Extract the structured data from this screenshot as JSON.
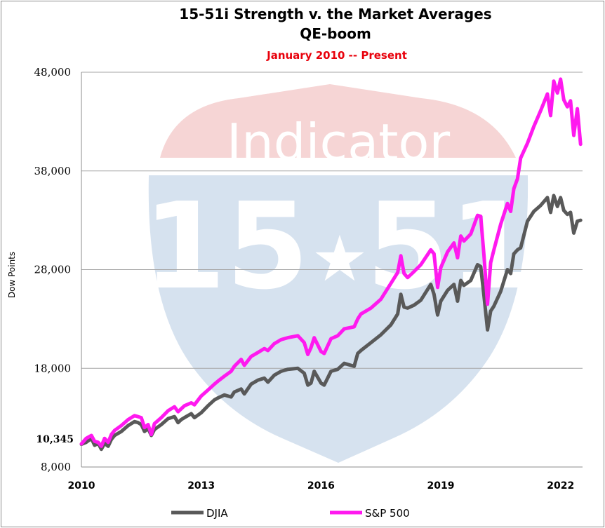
{
  "chart_data": {
    "type": "line",
    "title": "15-51i Strength v. the Market Averages",
    "title_line2": "QE-boom",
    "subtitle": "January 2010 -- Present",
    "ylabel": "Dow Points",
    "xlabel": "",
    "ylim": [
      8000,
      48000
    ],
    "xlim": [
      2010,
      2022.55
    ],
    "y_ticks": [
      8000,
      18000,
      28000,
      38000,
      48000
    ],
    "y_tick_labels": [
      "8,000",
      "18,000",
      "28,000",
      "38,000",
      "48,000"
    ],
    "y_special": {
      "value": 10345,
      "label": "10,345"
    },
    "x_ticks": [
      2010,
      2013,
      2016,
      2019,
      2022
    ],
    "x_tick_labels": [
      "2010",
      "2013",
      "2016",
      "2019",
      "2022"
    ],
    "grid": true,
    "legend": "bottom",
    "watermark": {
      "word": "Indicator",
      "left": "15",
      "star": "★",
      "right": "51"
    },
    "colors": {
      "DJIA": "#595959",
      "S&P 500": "#ff19ef",
      "grid": "#a6a6a6",
      "watermark_red": "#f4d3d3",
      "watermark_blue": "#d7e3f0"
    },
    "series": [
      {
        "name": "DJIA",
        "x": [
          2010.0,
          2010.12,
          2010.25,
          2010.33,
          2010.42,
          2010.5,
          2010.58,
          2010.67,
          2010.75,
          2010.83,
          2011.0,
          2011.17,
          2011.33,
          2011.42,
          2011.5,
          2011.58,
          2011.67,
          2011.75,
          2011.83,
          2012.0,
          2012.17,
          2012.33,
          2012.42,
          2012.5,
          2012.58,
          2012.75,
          2012.83,
          2013.0,
          2013.17,
          2013.33,
          2013.42,
          2013.58,
          2013.75,
          2013.83,
          2014.0,
          2014.08,
          2014.25,
          2014.42,
          2014.58,
          2014.67,
          2014.83,
          2015.0,
          2015.17,
          2015.42,
          2015.58,
          2015.67,
          2015.75,
          2015.83,
          2016.0,
          2016.08,
          2016.25,
          2016.42,
          2016.58,
          2016.83,
          2016.92,
          2017.0,
          2017.25,
          2017.5,
          2017.75,
          2017.92,
          2018.0,
          2018.08,
          2018.17,
          2018.33,
          2018.5,
          2018.75,
          2018.83,
          2018.92,
          2019.0,
          2019.17,
          2019.33,
          2019.42,
          2019.5,
          2019.58,
          2019.75,
          2019.92,
          2020.0,
          2020.08,
          2020.17,
          2020.25,
          2020.33,
          2020.5,
          2020.67,
          2020.75,
          2020.83,
          2020.92,
          2021.0,
          2021.17,
          2021.33,
          2021.5,
          2021.67,
          2021.75,
          2021.83,
          2021.92,
          2022.0,
          2022.08,
          2022.17,
          2022.25,
          2022.33,
          2022.42,
          2022.5
        ],
        "values": [
          10300,
          10500,
          10900,
          10200,
          10400,
          9800,
          10400,
          10100,
          10800,
          11200,
          11600,
          12200,
          12600,
          12500,
          12300,
          11600,
          11900,
          11200,
          11800,
          12300,
          12900,
          13100,
          12500,
          12800,
          13000,
          13400,
          13000,
          13500,
          14200,
          14800,
          15000,
          15300,
          15100,
          15600,
          15900,
          15400,
          16400,
          16800,
          17000,
          16600,
          17300,
          17700,
          17900,
          18000,
          17500,
          16300,
          16500,
          17700,
          16500,
          16300,
          17700,
          17900,
          18500,
          18200,
          19500,
          19800,
          20600,
          21400,
          22400,
          23500,
          25500,
          24200,
          24100,
          24400,
          24900,
          26500,
          25500,
          23400,
          24800,
          25900,
          26500,
          24800,
          26900,
          26400,
          26900,
          28500,
          28300,
          25400,
          21900,
          23800,
          24300,
          25800,
          28000,
          27600,
          29600,
          30000,
          30200,
          32900,
          33900,
          34500,
          35300,
          33800,
          35500,
          34400,
          35300,
          34000,
          33600,
          33800,
          31700,
          32900,
          33000
        ]
      },
      {
        "name": "S&P 500",
        "x": [
          2010.0,
          2010.12,
          2010.25,
          2010.33,
          2010.42,
          2010.5,
          2010.58,
          2010.67,
          2010.75,
          2010.83,
          2011.0,
          2011.17,
          2011.33,
          2011.42,
          2011.5,
          2011.58,
          2011.67,
          2011.75,
          2011.83,
          2012.0,
          2012.17,
          2012.33,
          2012.42,
          2012.5,
          2012.58,
          2012.75,
          2012.83,
          2013.0,
          2013.17,
          2013.33,
          2013.42,
          2013.58,
          2013.75,
          2013.83,
          2014.0,
          2014.08,
          2014.25,
          2014.42,
          2014.58,
          2014.67,
          2014.83,
          2015.0,
          2015.17,
          2015.42,
          2015.58,
          2015.67,
          2015.75,
          2015.83,
          2016.0,
          2016.08,
          2016.25,
          2016.42,
          2016.58,
          2016.83,
          2016.92,
          2017.0,
          2017.25,
          2017.5,
          2017.75,
          2017.92,
          2018.0,
          2018.08,
          2018.17,
          2018.33,
          2018.5,
          2018.75,
          2018.83,
          2018.92,
          2019.0,
          2019.17,
          2019.33,
          2019.42,
          2019.5,
          2019.58,
          2019.75,
          2019.92,
          2020.0,
          2020.08,
          2020.17,
          2020.25,
          2020.33,
          2020.5,
          2020.67,
          2020.75,
          2020.83,
          2020.92,
          2021.0,
          2021.17,
          2021.33,
          2021.5,
          2021.67,
          2021.75,
          2021.83,
          2021.92,
          2022.0,
          2022.08,
          2022.17,
          2022.25,
          2022.33,
          2022.42,
          2022.5
        ],
        "values": [
          10345,
          10900,
          11200,
          10600,
          10500,
          10100,
          10900,
          10500,
          11300,
          11700,
          12200,
          12800,
          13200,
          13100,
          13000,
          12000,
          12300,
          11300,
          12400,
          13000,
          13700,
          14100,
          13600,
          13900,
          14200,
          14500,
          14300,
          15200,
          15800,
          16400,
          16700,
          17200,
          17700,
          18200,
          18900,
          18300,
          19200,
          19600,
          20000,
          19800,
          20500,
          20900,
          21100,
          21300,
          20600,
          19400,
          20100,
          21100,
          19700,
          19500,
          21000,
          21300,
          22000,
          22200,
          23000,
          23500,
          24100,
          25000,
          26600,
          27700,
          29400,
          27600,
          27200,
          27800,
          28500,
          30000,
          29600,
          26200,
          28200,
          29800,
          30700,
          29200,
          31400,
          30900,
          31600,
          33500,
          33400,
          29500,
          24500,
          28700,
          30000,
          32600,
          34700,
          33900,
          36200,
          37200,
          39300,
          40800,
          42500,
          44100,
          45800,
          43600,
          47100,
          45900,
          47300,
          45200,
          44500,
          45100,
          41600,
          44300,
          40700
        ]
      }
    ]
  }
}
